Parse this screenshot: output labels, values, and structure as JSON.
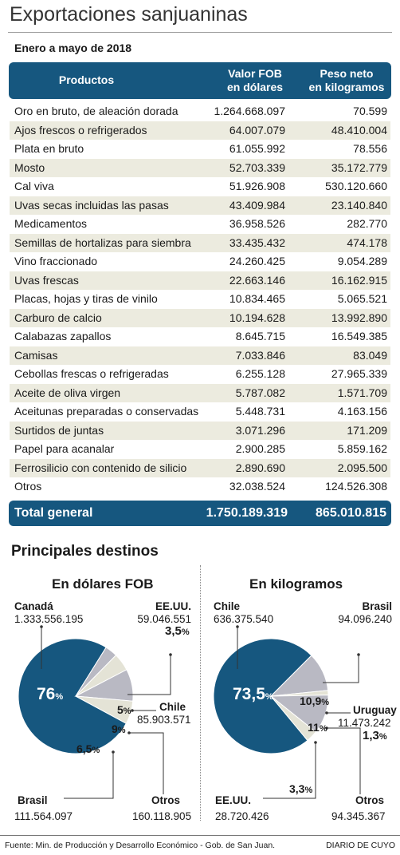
{
  "title": "Exportaciones sanjuaninas",
  "subtitle": "Enero a mayo de 2018",
  "colors": {
    "header": "#16577f",
    "alt_row": "#ecebdf",
    "pie_main": "#16577f",
    "pie_gray": "#b9b9c3",
    "pie_light": "#e4e3d6"
  },
  "table": {
    "headers": {
      "product": "Productos",
      "fob_line1": "Valor FOB",
      "fob_line2": "en dólares",
      "kg_line1": "Peso neto",
      "kg_line2": "en kilogramos"
    },
    "rows": [
      {
        "product": "Oro en bruto, de aleación dorada",
        "fob": "1.264.668.097",
        "kg": "70.599"
      },
      {
        "product": "Ajos frescos o refrigerados",
        "fob": "64.007.079",
        "kg": "48.410.004"
      },
      {
        "product": "Plata en bruto",
        "fob": "61.055.992",
        "kg": "78.556"
      },
      {
        "product": "Mosto",
        "fob": "52.703.339",
        "kg": "35.172.779"
      },
      {
        "product": "Cal viva",
        "fob": "51.926.908",
        "kg": "530.120.660"
      },
      {
        "product": "Uvas secas incluidas las pasas",
        "fob": "43.409.984",
        "kg": "23.140.840"
      },
      {
        "product": "Medicamentos",
        "fob": "36.958.526",
        "kg": "282.770"
      },
      {
        "product": "Semillas de hortalizas para  siembra",
        "fob": "33.435.432",
        "kg": "474.178"
      },
      {
        "product": "Vino fraccionado",
        "fob": "24.260.425",
        "kg": "9.054.289"
      },
      {
        "product": "Uvas frescas",
        "fob": "22.663.146",
        "kg": "16.162.915"
      },
      {
        "product": "Placas, hojas y tiras de vinilo",
        "fob": "10.834.465",
        "kg": "5.065.521"
      },
      {
        "product": "Carburo de calcio",
        "fob": "10.194.628",
        "kg": "13.992.890"
      },
      {
        "product": "Calabazas zapallos",
        "fob": "8.645.715",
        "kg": "16.549.385"
      },
      {
        "product": "Camisas",
        "fob": "7.033.846",
        "kg": "83.049"
      },
      {
        "product": "Cebollas frescas o refrigeradas",
        "fob": "6.255.128",
        "kg": "27.965.339"
      },
      {
        "product": "Aceite de oliva virgen",
        "fob": "5.787.082",
        "kg": "1.571.709"
      },
      {
        "product": "Aceitunas preparadas o conservadas",
        "fob": "5.448.731",
        "kg": "4.163.156"
      },
      {
        "product": "Surtidos de juntas",
        "fob": "3.071.296",
        "kg": "171.209"
      },
      {
        "product": "Papel para acanalar",
        "fob": "2.900.285",
        "kg": "5.859.162"
      },
      {
        "product": "Ferrosilicio con contenido de silicio",
        "fob": "2.890.690",
        "kg": "2.095.500"
      },
      {
        "product": "Otros",
        "fob": "32.038.524",
        "kg": "124.526.308"
      }
    ],
    "total": {
      "label": "Total general",
      "fob": "1.750.189.319",
      "kg": "865.010.815"
    }
  },
  "destinations_title": "Principales destinos",
  "chart_data": [
    {
      "type": "pie",
      "title": "En dólares FOB",
      "slices": [
        {
          "name": "Canadá",
          "value_text": "1.333.556.195",
          "percent": 76,
          "percent_label": "76%"
        },
        {
          "name": "EE.UU.",
          "value_text": "59.046.551",
          "percent": 3.5,
          "percent_label": "3,5%"
        },
        {
          "name": "Chile",
          "value_text": "85.903.571",
          "percent": 5,
          "percent_label": "5%"
        },
        {
          "name": "Otros",
          "value_text": "160.118.905",
          "percent": 9,
          "percent_label": "9%"
        },
        {
          "name": "Brasil",
          "value_text": "111.564.097",
          "percent": 6.5,
          "percent_label": "6,5%"
        }
      ]
    },
    {
      "type": "pie",
      "title": "En kilogramos",
      "slices": [
        {
          "name": "Chile",
          "value_text": "636.375.540",
          "percent": 73.5,
          "percent_label": "73,5%"
        },
        {
          "name": "Brasil",
          "value_text": "94.096.240",
          "percent": 10.9,
          "percent_label": "10,9%"
        },
        {
          "name": "Uruguay",
          "value_text": "11.473.242",
          "percent": 1.3,
          "percent_label": "1,3%"
        },
        {
          "name": "Otros",
          "value_text": "94.345.367",
          "percent": 11,
          "percent_label": "11%"
        },
        {
          "name": "EE.UU.",
          "value_text": "28.720.426",
          "percent": 3.3,
          "percent_label": "3,3%"
        }
      ]
    }
  ],
  "footer": {
    "source": "Fuente: Min. de Producción y Desarrollo Económico - Gob. de San Juan.",
    "brand": "DIARIO DE CUYO"
  }
}
